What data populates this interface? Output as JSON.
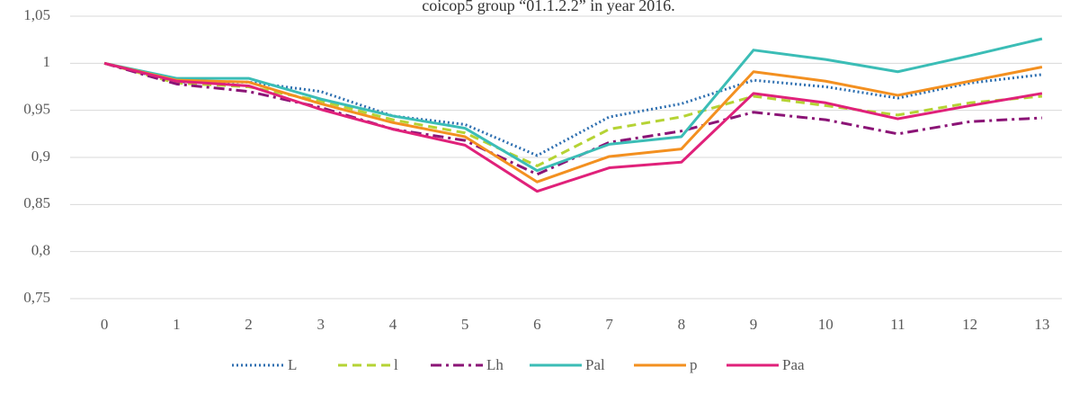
{
  "chart_data": {
    "type": "line",
    "title": "coicop5 group “01.1.2.2” in year 2016.",
    "categories": [
      "0",
      "1",
      "2",
      "3",
      "4",
      "5",
      "6",
      "7",
      "8",
      "9",
      "10",
      "11",
      "12",
      "13"
    ],
    "ylim": [
      0.75,
      1.05
    ],
    "yticks": [
      {
        "value": 0.75,
        "label": "0,75"
      },
      {
        "value": 0.8,
        "label": "0,8"
      },
      {
        "value": 0.85,
        "label": "0,85"
      },
      {
        "value": 0.9,
        "label": "0,9"
      },
      {
        "value": 0.95,
        "label": "0,95"
      },
      1,
      {
        "value": 1.05,
        "label": "1,05"
      }
    ],
    "grid": true,
    "legend": "bottom",
    "series": [
      {
        "name": "L",
        "color": "#2e6fb0",
        "dash": "dotted",
        "values": [
          1,
          0.98,
          0.98,
          0.97,
          0.944,
          0.935,
          0.902,
          0.943,
          0.957,
          0.982,
          0.975,
          0.963,
          0.979,
          0.988
        ]
      },
      {
        "name": "l",
        "color": "#b5d334",
        "dash": "dashed",
        "values": [
          1,
          0.979,
          0.975,
          0.96,
          0.94,
          0.926,
          0.891,
          0.93,
          0.943,
          0.965,
          0.955,
          0.945,
          0.958,
          0.965
        ]
      },
      {
        "name": "Lh",
        "color": "#8b1476",
        "dash": "dashdot",
        "values": [
          1,
          0.978,
          0.97,
          0.953,
          0.93,
          0.918,
          0.882,
          0.916,
          0.928,
          0.948,
          0.94,
          0.925,
          0.938,
          0.942
        ]
      },
      {
        "name": "Pal",
        "color": "#3bbdb6",
        "dash": "solid",
        "values": [
          1,
          0.984,
          0.984,
          0.962,
          0.944,
          0.931,
          0.886,
          0.914,
          0.922,
          1.014,
          1.004,
          0.991,
          1.008,
          1.026
        ]
      },
      {
        "name": "p",
        "color": "#f39020",
        "dash": "solid",
        "values": [
          1,
          0.982,
          0.98,
          0.957,
          0.937,
          0.922,
          0.874,
          0.901,
          0.909,
          0.991,
          0.981,
          0.966,
          0.981,
          0.996
        ]
      },
      {
        "name": "Paa",
        "color": "#e0217a",
        "dash": "solid",
        "values": [
          1,
          0.981,
          0.976,
          0.951,
          0.93,
          0.913,
          0.864,
          0.889,
          0.895,
          0.968,
          0.958,
          0.941,
          0.955,
          0.968
        ]
      }
    ]
  }
}
